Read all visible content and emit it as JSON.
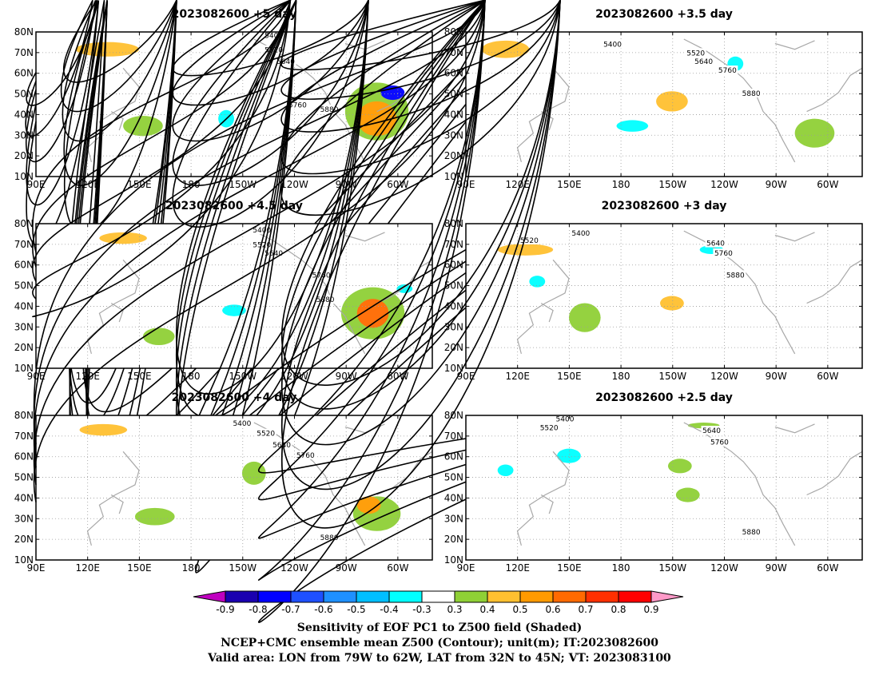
{
  "figure": {
    "panels": [
      {
        "title": "2023082600  +5 day"
      },
      {
        "title": "2023082600  +3.5 day"
      },
      {
        "title": "2023082600  +4.5 day"
      },
      {
        "title": "2023082600  +3 day"
      },
      {
        "title": "2023082600  +4 day"
      },
      {
        "title": "2023082600  +2.5 day"
      }
    ],
    "axes": {
      "lat_labels": [
        "10N",
        "20N",
        "30N",
        "40N",
        "50N",
        "60N",
        "70N",
        "80N"
      ],
      "lon_labels": [
        "90E",
        "120E",
        "150E",
        "180",
        "150W",
        "120W",
        "90W",
        "60W"
      ],
      "lat_range": [
        10,
        80
      ],
      "lon_range": [
        90,
        320
      ],
      "grid": "dotted"
    },
    "contour_levels": [
      5400,
      5520,
      5640,
      5760,
      5880
    ],
    "colorbar": {
      "ticks": [
        "-0.9",
        "-0.8",
        "-0.7",
        "-0.6",
        "-0.5",
        "-0.4",
        "-0.3",
        "0.3",
        "0.4",
        "0.5",
        "0.6",
        "0.7",
        "0.8",
        "0.9"
      ],
      "colors": [
        "#c000c0",
        "#1a00b0",
        "#0000ff",
        "#1e50ff",
        "#1e90ff",
        "#00bfff",
        "#00ffff",
        "#ffffff",
        "#8fd036",
        "#ffc030",
        "#ff9a00",
        "#ff6a00",
        "#ff3000",
        "#ff0000",
        "#ff9ac8"
      ]
    },
    "captions": [
      "Sensitivity of EOF PC1 to Z500 field (Shaded)",
      "NCEP+CMC ensemble mean Z500 (Contour); unit(m); IT:2023082600",
      "Valid area: LON from 79W to 62W, LAT from 32N to 45N; VT: 2023083100"
    ]
  }
}
